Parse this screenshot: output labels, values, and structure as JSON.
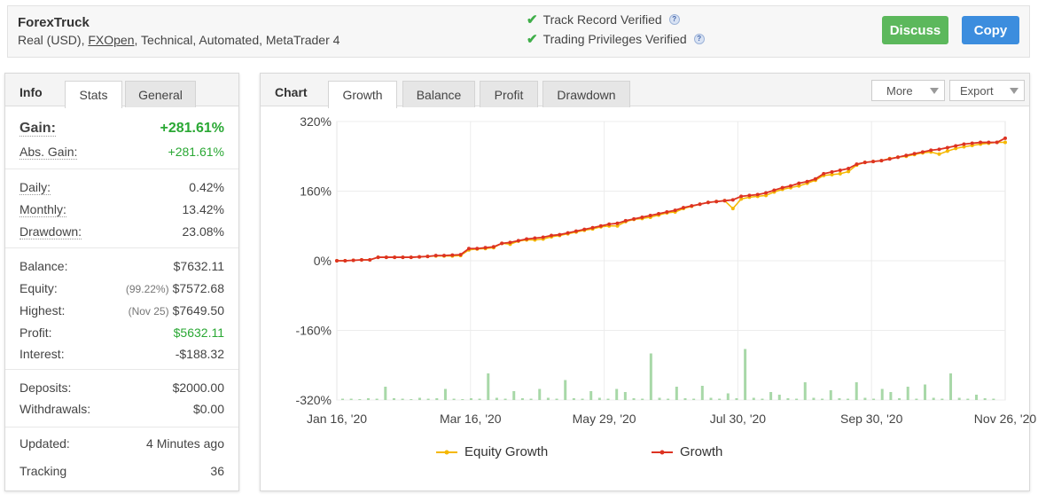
{
  "header": {
    "system_name": "ForexTruck",
    "account_type": "Real (USD),",
    "broker": "FXOpen",
    "details": ", Technical, Automated, MetaTrader 4",
    "verifications": [
      {
        "label": "Track Record Verified",
        "icon": "check-icon"
      },
      {
        "label": "Trading Privileges Verified",
        "icon": "check-icon"
      }
    ],
    "discuss_label": "Discuss",
    "copy_label": "Copy",
    "colors": {
      "discuss": "#5cb85c",
      "copy": "#3c8dde",
      "check": "#3fae49"
    }
  },
  "info": {
    "title": "Info",
    "tabs": [
      "Stats",
      "General"
    ],
    "active_tab": "Stats",
    "gain_label": "Gain:",
    "gain_value": "+281.61%",
    "abs_gain_label": "Abs. Gain:",
    "abs_gain_value": "+281.61%",
    "daily_label": "Daily:",
    "daily_value": "0.42%",
    "monthly_label": "Monthly:",
    "monthly_value": "13.42%",
    "drawdown_label": "Drawdown:",
    "drawdown_value": "23.08%",
    "balance_label": "Balance:",
    "balance_value": "$7632.11",
    "equity_label": "Equity:",
    "equity_note": "(99.22%)",
    "equity_value": "$7572.68",
    "highest_label": "Highest:",
    "highest_note": "(Nov 25)",
    "highest_value": "$7649.50",
    "profit_label": "Profit:",
    "profit_value": "$5632.11",
    "interest_label": "Interest:",
    "interest_value": "-$188.32",
    "deposits_label": "Deposits:",
    "deposits_value": "$2000.00",
    "withdrawals_label": "Withdrawals:",
    "withdrawals_value": "$0.00",
    "updated_label": "Updated:",
    "updated_value": "4 Minutes ago",
    "tracking_label": "Tracking",
    "tracking_value": "36"
  },
  "chart_panel": {
    "title": "Chart",
    "tabs": [
      "Growth",
      "Balance",
      "Profit",
      "Drawdown"
    ],
    "active_tab": "Growth",
    "more_label": "More",
    "export_label": "Export"
  },
  "chart_data": {
    "type": "line",
    "title": "",
    "xlabel": "",
    "ylabel": "",
    "ylim": [
      -320,
      320
    ],
    "y_ticks": [
      "320%",
      "160%",
      "0%",
      "-160%",
      "-320%"
    ],
    "x_ticks": [
      "Jan 16, '20",
      "Mar 16, '20",
      "May 29, '20",
      "Jul 30, '20",
      "Sep 30, '20",
      "Nov 26, '20"
    ],
    "grid": true,
    "legend_position": "bottom",
    "series": [
      {
        "name": "Equity Growth",
        "color": "#f5b800",
        "x": [
          0,
          4,
          8,
          12,
          16,
          20,
          24,
          28,
          32,
          36,
          40,
          44,
          48,
          52,
          56,
          60,
          64,
          68,
          72,
          76,
          80,
          84,
          88,
          92,
          96,
          100,
          104,
          108,
          112,
          116,
          120,
          124,
          128,
          132,
          136,
          140,
          144,
          148,
          152,
          156,
          160,
          164,
          168,
          172,
          176,
          180,
          184,
          188,
          192,
          196,
          200,
          204,
          208,
          212,
          216,
          220,
          224,
          228,
          232,
          236,
          240,
          244,
          248,
          252,
          256,
          260,
          264,
          268,
          272,
          276,
          280,
          284,
          288,
          292,
          296,
          300,
          304,
          308,
          312,
          316,
          320,
          324
        ],
        "values": [
          0,
          0,
          1,
          2,
          2,
          8,
          8,
          8,
          8,
          8,
          9,
          10,
          11,
          11,
          11,
          12,
          25,
          27,
          28,
          30,
          40,
          38,
          45,
          48,
          48,
          50,
          55,
          58,
          62,
          66,
          70,
          73,
          78,
          80,
          80,
          90,
          95,
          97,
          100,
          105,
          110,
          112,
          120,
          125,
          130,
          134,
          136,
          138,
          120,
          142,
          146,
          148,
          150,
          158,
          164,
          168,
          172,
          178,
          185,
          196,
          198,
          200,
          205,
          220,
          226,
          228,
          230,
          235,
          238,
          240,
          244,
          248,
          250,
          245,
          252,
          258,
          262,
          265,
          268,
          270,
          272,
          272
        ]
      },
      {
        "name": "Growth",
        "color": "#dd3322",
        "x": [
          0,
          4,
          8,
          12,
          16,
          20,
          24,
          28,
          32,
          36,
          40,
          44,
          48,
          52,
          56,
          60,
          64,
          68,
          72,
          76,
          80,
          84,
          88,
          92,
          96,
          100,
          104,
          108,
          112,
          116,
          120,
          124,
          128,
          132,
          136,
          140,
          144,
          148,
          152,
          156,
          160,
          164,
          168,
          172,
          176,
          180,
          184,
          188,
          192,
          196,
          200,
          204,
          208,
          212,
          216,
          220,
          224,
          228,
          232,
          236,
          240,
          244,
          248,
          252,
          256,
          260,
          264,
          268,
          272,
          276,
          280,
          284,
          288,
          292,
          296,
          300,
          304,
          308,
          312,
          316,
          320,
          324
        ],
        "values": [
          0,
          0,
          1,
          2,
          2,
          8,
          8,
          8,
          8,
          8,
          9,
          10,
          12,
          12,
          13,
          14,
          28,
          28,
          30,
          32,
          40,
          42,
          46,
          50,
          52,
          54,
          58,
          60,
          64,
          68,
          72,
          76,
          80,
          84,
          86,
          92,
          96,
          100,
          104,
          108,
          112,
          116,
          122,
          126,
          130,
          134,
          136,
          138,
          140,
          148,
          150,
          152,
          156,
          162,
          168,
          172,
          178,
          182,
          188,
          200,
          204,
          208,
          212,
          222,
          226,
          228,
          230,
          234,
          238,
          242,
          246,
          250,
          254,
          256,
          260,
          264,
          268,
          270,
          272,
          272,
          272,
          281.61
        ]
      }
    ],
    "volume_bars": [
      3,
      3,
      2,
      4,
      3,
      30,
      4,
      3,
      2,
      5,
      3,
      4,
      25,
      3,
      2,
      4,
      3,
      60,
      5,
      3,
      20,
      4,
      3,
      25,
      5,
      3,
      45,
      4,
      3,
      20,
      5,
      3,
      25,
      18,
      4,
      3,
      105,
      5,
      3,
      30,
      4,
      3,
      32,
      5,
      3,
      15,
      4,
      115,
      5,
      3,
      18,
      12,
      4,
      3,
      40,
      5,
      3,
      22,
      4,
      3,
      40,
      5,
      3,
      25,
      18,
      4,
      30,
      3,
      35,
      5,
      3,
      60,
      5,
      3,
      12,
      4,
      3
    ]
  }
}
